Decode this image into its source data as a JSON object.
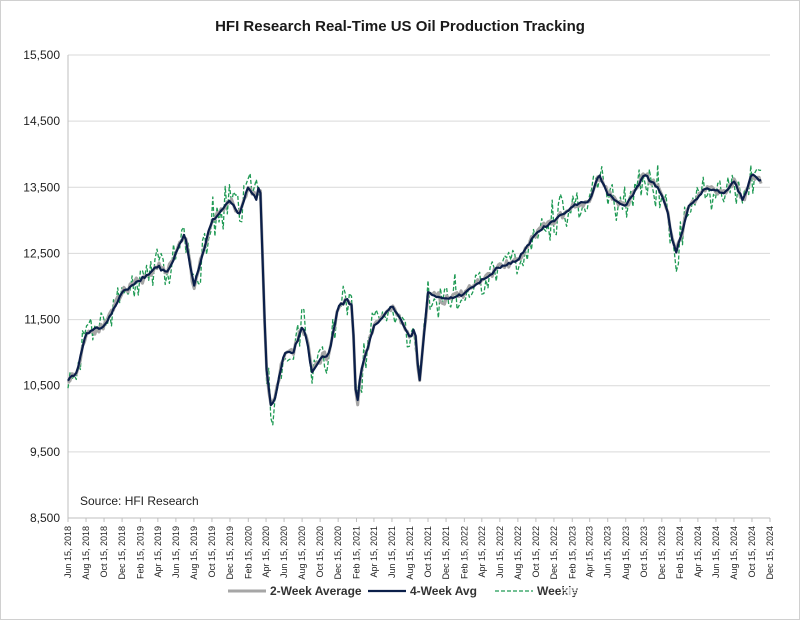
{
  "chart_data": {
    "type": "line",
    "title": "HFI Research Real-Time US Oil Production Tracking",
    "source": "Source: HFI Research",
    "ylim": [
      8500,
      15500
    ],
    "yticks": [
      "15,500",
      "14,500",
      "13,500",
      "12,500",
      "11,500",
      "10,500",
      "9,500",
      "8,500"
    ],
    "ytick_values": [
      15500,
      14500,
      13500,
      12500,
      11500,
      10500,
      9500,
      8500
    ],
    "grid": true,
    "legend": "bottom",
    "x_start": "2018-06-15",
    "x_end": "2024-12-15",
    "xticks": [
      "Jun 15, 2018",
      "Aug 15, 2018",
      "Oct 15, 2018",
      "Dec 15, 2018",
      "Feb 15, 2019",
      "Apr 15, 2019",
      "Jun 15, 2019",
      "Aug 15, 2019",
      "Oct 15, 2019",
      "Dec 15, 2019",
      "Feb 15, 2020",
      "Apr 15, 2020",
      "Jun 15, 2020",
      "Aug 15, 2020",
      "Oct 15, 2020",
      "Dec 15, 2020",
      "Feb 15, 2021",
      "Apr 15, 2021",
      "Jun 15, 2021",
      "Aug 15, 2021",
      "Oct 15, 2021",
      "Dec 15, 2021",
      "Feb 15, 2022",
      "Apr 15, 2022",
      "Jun 15, 2022",
      "Aug 15, 2022",
      "Oct 15, 2022",
      "Dec 15, 2022",
      "Feb 15, 2023",
      "Apr 15, 2023",
      "Jun 15, 2023",
      "Aug 15, 2023",
      "Oct 15, 2023",
      "Dec 15, 2023",
      "Feb 15, 2024",
      "Apr 15, 2024",
      "Jun 15, 2024",
      "Aug 15, 2024",
      "Oct 15, 2024",
      "Dec 15, 2024"
    ],
    "keypoints": {
      "x": [
        "2018-06-15",
        "2018-07-15",
        "2018-08-15",
        "2018-10-15",
        "2018-12-15",
        "2019-02-15",
        "2019-04-15",
        "2019-05-15",
        "2019-06-15",
        "2019-07-15",
        "2019-08-15",
        "2019-10-15",
        "2019-12-15",
        "2020-01-15",
        "2020-02-15",
        "2020-03-15",
        "2020-03-25",
        "2020-04-15",
        "2020-05-01",
        "2020-05-15",
        "2020-06-15",
        "2020-07-15",
        "2020-08-15",
        "2020-09-01",
        "2020-09-15",
        "2020-10-15",
        "2020-11-15",
        "2020-12-15",
        "2021-01-15",
        "2021-02-01",
        "2021-02-15",
        "2021-03-01",
        "2021-04-15",
        "2021-06-15",
        "2021-07-15",
        "2021-08-15",
        "2021-09-01",
        "2021-09-15",
        "2021-10-15",
        "2021-12-15",
        "2022-02-15",
        "2022-04-15",
        "2022-06-15",
        "2022-08-15",
        "2022-10-15",
        "2022-12-15",
        "2023-02-15",
        "2023-04-15",
        "2023-05-15",
        "2023-06-15",
        "2023-08-15",
        "2023-10-15",
        "2023-12-01",
        "2024-01-01",
        "2024-01-15",
        "2024-02-01",
        "2024-03-15",
        "2024-05-15",
        "2024-07-15",
        "2024-08-15",
        "2024-09-15",
        "2024-10-15",
        "2024-11-15"
      ],
      "y": [
        10600,
        10700,
        11300,
        11400,
        11900,
        12100,
        12300,
        12200,
        12500,
        12800,
        12000,
        13000,
        13300,
        13100,
        13500,
        13300,
        13700,
        10800,
        10200,
        10300,
        11000,
        11000,
        11400,
        11200,
        10700,
        10900,
        11000,
        11700,
        11800,
        11700,
        10100,
        10700,
        11400,
        11700,
        11500,
        11200,
        11400,
        10500,
        11900,
        11800,
        11900,
        12100,
        12300,
        12400,
        12800,
        13000,
        13200,
        13300,
        13700,
        13400,
        13200,
        13700,
        13500,
        13200,
        12800,
        12500,
        13200,
        13500,
        13400,
        13600,
        13300,
        13700,
        13600
      ]
    },
    "series": [
      {
        "name": "2-Week Average",
        "color": "#a6a6a6",
        "stroke": 3,
        "dash": "",
        "offset": 0,
        "noise": 55
      },
      {
        "name": "4-Week Avg",
        "color": "#0b1f4a",
        "stroke": 2.2,
        "dash": "",
        "offset": 0,
        "noise": 20
      },
      {
        "name": "Weekly",
        "color": "#1f9a54",
        "stroke": 1.3,
        "dash": "4,2",
        "offset": 0,
        "noise": 260
      }
    ],
    "watermark": "雪球：Archerong"
  }
}
